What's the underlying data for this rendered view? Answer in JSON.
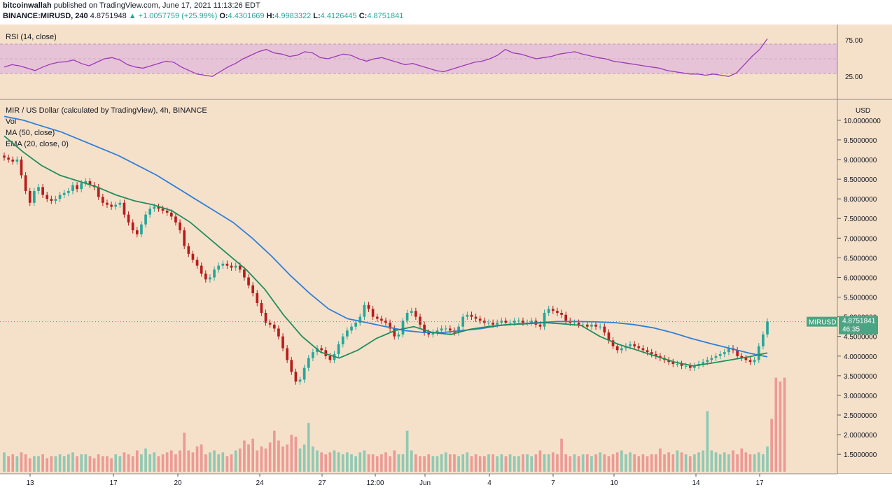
{
  "header": {
    "author": "bitcoinwallah",
    "published_text": "published on TradingView.com, June 17, 2021 11:13:26 EDT",
    "symbol": "BINANCE:MIRUSD, 240",
    "last": "4.8751948",
    "change": "▲ +1.0057759 (+25.99%)",
    "o_label": "O:",
    "o_value": "4.4301669",
    "h_label": "H:",
    "h_value": "4.9983322",
    "l_label": "L:",
    "l_value": "4.4126445",
    "c_label": "C:",
    "c_value": "4.8751841"
  },
  "rsi_panel": {
    "label": "RSI (14, close)",
    "ticks": [
      "75.00",
      "25.00"
    ]
  },
  "main_panel": {
    "title": "MIR / US Dollar (calculated by TradingView), 4h, BINANCE",
    "legend": [
      "Vol",
      "MA (50, close)",
      "EMA (20, close, 0)"
    ],
    "currency": "USD",
    "price_ticks": [
      "10.0000000",
      "9.5000000",
      "9.0000000",
      "8.5000000",
      "8.0000000",
      "7.5000000",
      "7.0000000",
      "6.5000000",
      "6.0000000",
      "5.5000000",
      "5.0000000",
      "4.5000000",
      "4.0000000",
      "3.5000000",
      "3.0000000",
      "2.5000000",
      "2.0000000",
      "1.5000000"
    ],
    "price_label_symbol": "MIRUSD",
    "price_label_value": "4.8751841",
    "price_label_countdown": "46:35",
    "x_ticks": [
      "13",
      "17",
      "20",
      "24",
      "27",
      "12:00",
      "Jun",
      "4",
      "7",
      "10",
      "14",
      "17"
    ]
  },
  "colors": {
    "background": "#f5e1ca",
    "up": "#26a69a",
    "down": "#b71c1c",
    "vol_up": "#8fc9b3",
    "vol_down": "#ec9a96",
    "ma": "#2f7fd8",
    "ema": "#1f8e5e",
    "rsi": "#9a3ab8",
    "rsi_band": "#e7c3d7"
  },
  "chart_data": {
    "type": "candlestick",
    "title": "MIR / US Dollar (calculated by TradingView), 4h, BINANCE",
    "x_ticks": [
      "13",
      "17",
      "20",
      "24",
      "27",
      "12:00",
      "Jun",
      "4",
      "7",
      "10",
      "14",
      "17"
    ],
    "y_range": [
      1.2,
      10.3
    ],
    "candles_close": [
      9.05,
      9.0,
      8.95,
      9.0,
      8.6,
      8.2,
      7.9,
      8.2,
      8.3,
      8.1,
      8.0,
      7.95,
      8.0,
      8.1,
      8.15,
      8.2,
      8.35,
      8.25,
      8.4,
      8.45,
      8.35,
      8.3,
      8.05,
      7.9,
      7.85,
      7.8,
      7.85,
      7.9,
      7.6,
      7.4,
      7.2,
      7.1,
      7.35,
      7.6,
      7.75,
      7.8,
      7.75,
      7.7,
      7.65,
      7.55,
      7.4,
      7.2,
      6.8,
      6.6,
      6.45,
      6.3,
      6.1,
      5.95,
      6.0,
      6.2,
      6.3,
      6.35,
      6.3,
      6.25,
      6.3,
      6.2,
      6.0,
      5.8,
      5.6,
      5.35,
      5.1,
      4.85,
      4.8,
      4.7,
      4.5,
      4.2,
      3.9,
      3.6,
      3.35,
      3.4,
      3.7,
      3.95,
      4.1,
      4.2,
      4.15,
      4.0,
      3.9,
      4.05,
      4.3,
      4.5,
      4.65,
      4.75,
      4.85,
      5.0,
      5.3,
      5.2,
      5.0,
      4.95,
      4.9,
      4.85,
      4.7,
      4.5,
      4.55,
      4.9,
      5.1,
      5.15,
      5.0,
      4.8,
      4.6,
      4.55,
      4.6,
      4.65,
      4.7,
      4.7,
      4.65,
      4.6,
      4.75,
      5.0,
      5.05,
      5.0,
      4.95,
      4.9,
      4.85,
      4.85,
      4.8,
      4.85,
      4.9,
      4.85,
      4.85,
      4.9,
      4.9,
      4.85,
      4.85,
      4.9,
      4.8,
      4.75,
      5.1,
      5.2,
      5.15,
      5.1,
      5.05,
      4.9,
      4.85,
      4.85,
      4.8,
      4.8,
      4.75,
      4.8,
      4.75,
      4.75,
      4.6,
      4.4,
      4.25,
      4.15,
      4.2,
      4.25,
      4.3,
      4.25,
      4.2,
      4.15,
      4.1,
      4.05,
      4.0,
      3.95,
      3.9,
      3.85,
      3.8,
      3.8,
      3.75,
      3.75,
      3.7,
      3.75,
      3.8,
      3.85,
      3.9,
      3.95,
      4.0,
      4.05,
      4.1,
      4.2,
      4.15,
      4.0,
      3.95,
      3.9,
      3.85,
      3.9,
      4.25,
      4.55,
      4.88
    ],
    "volume": [
      1.55,
      1.45,
      1.5,
      1.45,
      1.55,
      1.5,
      1.4,
      1.45,
      1.45,
      1.5,
      1.4,
      1.45,
      1.45,
      1.5,
      1.45,
      1.5,
      1.55,
      1.45,
      1.5,
      1.5,
      1.45,
      1.4,
      1.5,
      1.45,
      1.45,
      1.4,
      1.5,
      1.45,
      1.55,
      1.5,
      1.45,
      1.6,
      1.5,
      1.65,
      1.5,
      1.55,
      1.45,
      1.5,
      1.55,
      1.6,
      1.5,
      1.6,
      2.05,
      1.6,
      1.55,
      1.7,
      1.75,
      1.5,
      1.55,
      1.6,
      1.5,
      1.55,
      1.45,
      1.5,
      1.6,
      1.65,
      1.85,
      1.75,
      1.9,
      1.6,
      1.7,
      1.65,
      1.8,
      2.1,
      1.85,
      1.7,
      1.75,
      2.0,
      1.95,
      1.65,
      1.75,
      2.3,
      1.7,
      1.6,
      1.55,
      1.5,
      1.55,
      1.6,
      1.55,
      1.5,
      1.55,
      1.5,
      1.45,
      1.55,
      1.6,
      1.5,
      1.5,
      1.45,
      1.5,
      1.55,
      1.45,
      1.6,
      1.5,
      1.5,
      2.1,
      1.6,
      1.5,
      1.45,
      1.45,
      1.5,
      1.45,
      1.45,
      1.5,
      1.55,
      1.5,
      1.5,
      1.45,
      1.5,
      1.55,
      1.45,
      1.5,
      1.45,
      1.45,
      1.5,
      1.5,
      1.45,
      1.5,
      1.45,
      1.5,
      1.45,
      1.45,
      1.5,
      1.5,
      1.45,
      1.5,
      1.6,
      1.5,
      1.5,
      1.55,
      1.5,
      1.9,
      1.5,
      1.45,
      1.5,
      1.45,
      1.5,
      1.5,
      1.45,
      1.5,
      1.55,
      1.5,
      1.45,
      1.5,
      1.55,
      1.6,
      1.5,
      1.55,
      1.5,
      1.45,
      1.5,
      1.45,
      1.5,
      1.5,
      1.65,
      1.5,
      1.55,
      1.5,
      1.6,
      1.55,
      1.5,
      1.45,
      1.5,
      1.55,
      1.6,
      2.6,
      1.6,
      1.55,
      1.5,
      1.55,
      1.5,
      1.6,
      1.5,
      1.65,
      1.55,
      1.5,
      1.5,
      1.55,
      1.5,
      1.7,
      2.4,
      3.45,
      3.35,
      3.45
    ],
    "ma50": [
      10.1,
      10.0,
      9.85,
      9.7,
      9.5,
      9.3,
      9.1,
      8.85,
      8.6,
      8.3,
      8.0,
      7.7,
      7.4,
      7.0,
      6.55,
      6.05,
      5.6,
      5.2,
      4.95,
      4.85,
      4.75,
      4.65,
      4.6,
      4.6,
      4.65,
      4.7,
      4.78,
      4.82,
      4.85,
      4.88,
      4.88,
      4.87,
      4.85,
      4.8,
      4.72,
      4.6,
      4.45,
      4.32,
      4.2,
      4.08,
      3.98
    ],
    "ema20": [
      9.6,
      9.2,
      8.85,
      8.6,
      8.45,
      8.3,
      8.1,
      7.95,
      7.85,
      7.7,
      7.4,
      7.0,
      6.6,
      6.2,
      5.7,
      5.05,
      4.5,
      4.1,
      3.95,
      4.15,
      4.45,
      4.65,
      4.75,
      4.6,
      4.55,
      4.68,
      4.75,
      4.8,
      4.82,
      4.85,
      4.82,
      4.78,
      4.5,
      4.3,
      4.15,
      4.0,
      3.85,
      3.75,
      3.82,
      3.9,
      3.98,
      4.08
    ],
    "rsi": [
      36,
      40,
      38,
      34,
      30,
      36,
      41,
      44,
      45,
      48,
      42,
      38,
      44,
      50,
      52,
      48,
      40,
      36,
      34,
      38,
      42,
      46,
      44,
      36,
      30,
      24,
      22,
      20,
      28,
      36,
      42,
      50,
      56,
      62,
      66,
      60,
      58,
      54,
      56,
      62,
      60,
      52,
      50,
      54,
      58,
      56,
      50,
      46,
      50,
      52,
      48,
      44,
      40,
      42,
      38,
      34,
      30,
      28,
      32,
      36,
      40,
      44,
      46,
      50,
      56,
      66,
      60,
      58,
      54,
      50,
      52,
      54,
      58,
      60,
      62,
      58,
      55,
      52,
      50,
      46,
      44,
      42,
      40,
      38,
      36,
      34,
      30,
      28,
      26,
      24,
      24,
      22,
      24,
      22,
      20,
      26,
      40,
      54,
      66,
      84
    ]
  }
}
